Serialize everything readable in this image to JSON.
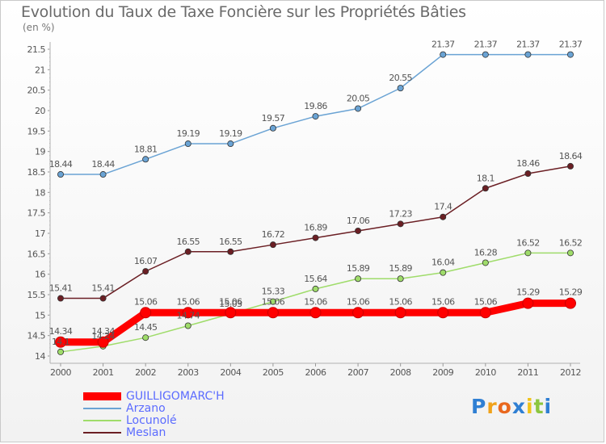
{
  "title": "Evolution du Taux de Taxe Foncière sur les Propriétés Bâties",
  "unit": "(en %)",
  "logo": "Proxiti",
  "logo_letters": [
    {
      "ch": "P",
      "color": "#2f7fd3"
    },
    {
      "ch": "r",
      "color": "#f0a21a"
    },
    {
      "ch": "o",
      "color": "#e9681e"
    },
    {
      "ch": "x",
      "color": "#2f7fd3"
    },
    {
      "ch": "i",
      "color": "#f0c31a"
    },
    {
      "ch": "t",
      "color": "#8cc63f"
    },
    {
      "ch": "i",
      "color": "#2f7fd3"
    }
  ],
  "chart_data": {
    "type": "line",
    "title": "Evolution du Taux de Taxe Foncière sur les Propriétés Bâties",
    "ylabel": "(en %)",
    "x": [
      "2000",
      "2001",
      "2002",
      "2003",
      "2004",
      "2005",
      "2006",
      "2007",
      "2008",
      "2009",
      "2010",
      "2011",
      "2012"
    ],
    "ylim": [
      14,
      21.5
    ],
    "yticks": [
      "14",
      "14.5",
      "15",
      "15.5",
      "16",
      "16.5",
      "17",
      "17.5",
      "18",
      "18.5",
      "19",
      "19.5",
      "20",
      "20.5",
      "21",
      "21.5"
    ],
    "legend_position": "bottom-left",
    "series": [
      {
        "name": "GUILLIGOMARC'H",
        "color": "#ff0000",
        "values": [
          14.34,
          14.34,
          15.06,
          15.06,
          15.06,
          15.06,
          15.06,
          15.06,
          15.06,
          15.06,
          15.06,
          15.29,
          15.29
        ]
      },
      {
        "name": "Arzano",
        "color": "#6aa3d4",
        "values": [
          18.44,
          18.44,
          18.81,
          19.19,
          19.19,
          19.57,
          19.86,
          20.05,
          20.55,
          21.37,
          21.37,
          21.37,
          21.37
        ]
      },
      {
        "name": "Locunolé",
        "color": "#9fdc6a",
        "values": [
          14.1,
          14.24,
          14.45,
          14.74,
          15.03,
          15.33,
          15.64,
          15.89,
          15.89,
          16.04,
          16.28,
          16.52,
          16.52
        ]
      },
      {
        "name": "Meslan",
        "color": "#6b1f24",
        "values": [
          15.41,
          15.41,
          16.07,
          16.55,
          16.55,
          16.72,
          16.89,
          17.06,
          17.23,
          17.4,
          18.1,
          18.46,
          18.64
        ]
      }
    ],
    "data_labels": [
      [
        "14.34",
        "14.34",
        "15.06",
        "15.06",
        "15.06",
        "15.06",
        "15.06",
        "15.06",
        "15.06",
        "15.06",
        "15.06",
        "15.29",
        "15.29"
      ],
      [
        "18.44",
        "18.44",
        "18.81",
        "19.19",
        "19.19",
        "19.57",
        "19.86",
        "20.05",
        "20.55",
        "21.37",
        "21.37",
        "21.37",
        "21.37"
      ],
      [
        "14.1",
        "14.24",
        "14.45",
        "14.74",
        "15.03",
        "15.33",
        "15.64",
        "15.89",
        "15.89",
        "16.04",
        "16.28",
        "16.52",
        "16.52"
      ],
      [
        "15.41",
        "15.41",
        "16.07",
        "16.55",
        "16.55",
        "16.72",
        "16.89",
        "17.06",
        "17.23",
        "17.4",
        "18.1",
        "18.46",
        "18.64"
      ]
    ],
    "grid": false
  }
}
